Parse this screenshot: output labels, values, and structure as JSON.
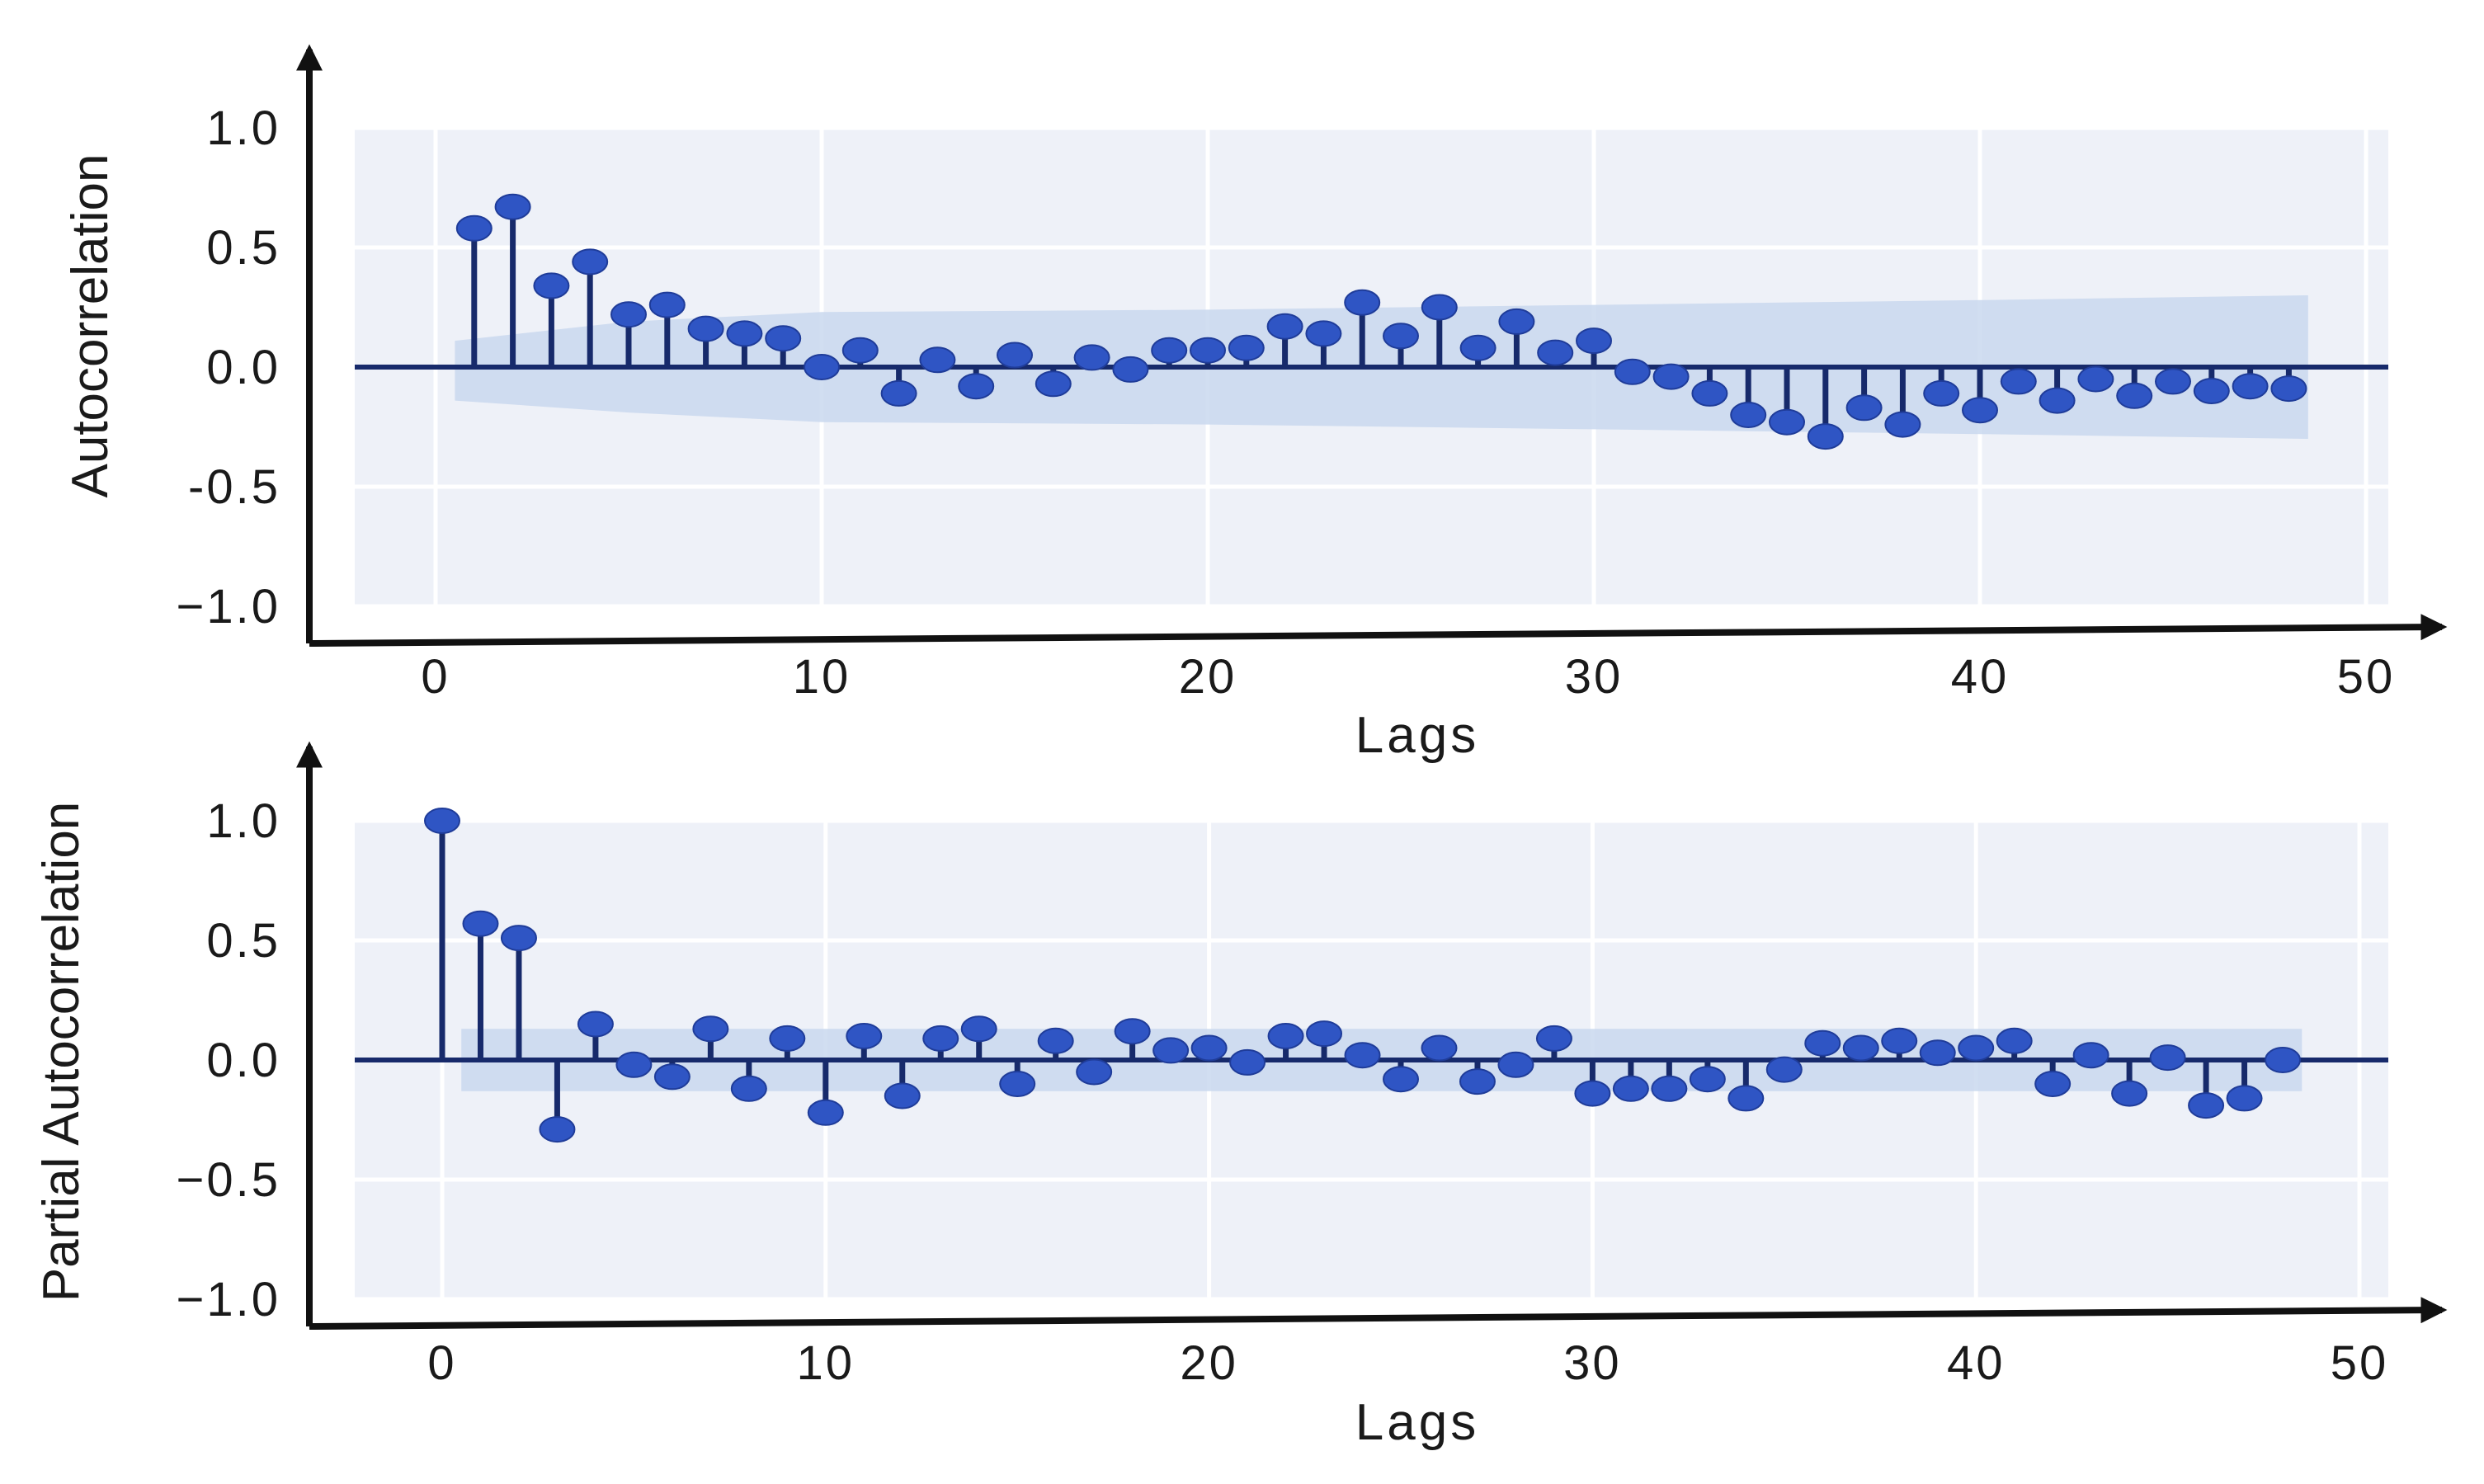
{
  "chart_data": [
    {
      "type": "stem",
      "title": "",
      "xlabel": "Lags",
      "ylabel": "Autocorrelation",
      "xlim": [
        -2.5,
        50
      ],
      "ylim": [
        -1.0,
        1.0
      ],
      "xticks": [
        0,
        10,
        20,
        30,
        40,
        50
      ],
      "yticks": [
        1.0,
        0.5,
        0.0,
        -0.5,
        -1.0
      ],
      "xtick_labels": [
        "0",
        "10",
        "20",
        "30",
        "40",
        "50"
      ],
      "ytick_labels": [
        "1.0",
        "0.5",
        "0.0",
        "-0.5",
        "−1.0"
      ],
      "grid": true,
      "lags": [
        1,
        2,
        3,
        4,
        5,
        6,
        7,
        8,
        9,
        10,
        11,
        12,
        13,
        14,
        15,
        16,
        17,
        18,
        19,
        20,
        21,
        22,
        23,
        24,
        25,
        26,
        27,
        28,
        29,
        30,
        31,
        32,
        33,
        34,
        35,
        36,
        37,
        38,
        39,
        40,
        41,
        42,
        43,
        44,
        45,
        46,
        47,
        48
      ],
      "values": [
        0.58,
        0.67,
        0.34,
        0.44,
        0.22,
        0.26,
        0.16,
        0.14,
        0.12,
        0.0,
        0.07,
        -0.11,
        0.03,
        -0.08,
        0.05,
        -0.07,
        0.04,
        -0.01,
        0.07,
        0.07,
        0.08,
        0.17,
        0.14,
        0.27,
        0.13,
        0.25,
        0.08,
        0.19,
        0.06,
        0.11,
        -0.02,
        -0.04,
        -0.11,
        -0.2,
        -0.23,
        -0.29,
        -0.17,
        -0.24,
        -0.11,
        -0.18,
        -0.06,
        -0.14,
        -0.05,
        -0.12,
        -0.06,
        -0.1,
        -0.08,
        -0.09
      ],
      "confidence_band": {
        "x": [
          0.5,
          5,
          10,
          20,
          30,
          40,
          48.5
        ],
        "upper": [
          0.11,
          0.19,
          0.23,
          0.24,
          0.26,
          0.28,
          0.3
        ],
        "lower": [
          -0.14,
          -0.19,
          -0.23,
          -0.24,
          -0.26,
          -0.28,
          -0.3
        ]
      },
      "colors": {
        "marker": "#2f55c4",
        "stem": "#172a6b",
        "zero_line": "#172a6b",
        "band": "#c9d8ef",
        "panel": "#eef1f8"
      }
    },
    {
      "type": "stem",
      "title": "",
      "xlabel": "Lags",
      "ylabel": "Partial Autocorrelation",
      "xlim": [
        -2.5,
        50
      ],
      "ylim": [
        -1.0,
        1.0
      ],
      "xticks": [
        0,
        10,
        20,
        30,
        40,
        50
      ],
      "yticks": [
        1.0,
        0.5,
        0.0,
        -0.5,
        -1.0
      ],
      "xtick_labels": [
        "0",
        "10",
        "20",
        "30",
        "40",
        "50"
      ],
      "ytick_labels": [
        "1.0",
        "0.5",
        "0.0",
        "−0.5",
        "−1.0"
      ],
      "grid": true,
      "lags": [
        0,
        1,
        2,
        3,
        4,
        5,
        6,
        7,
        8,
        9,
        10,
        11,
        12,
        13,
        14,
        15,
        16,
        17,
        18,
        19,
        20,
        21,
        22,
        23,
        24,
        25,
        26,
        27,
        28,
        29,
        30,
        31,
        32,
        33,
        34,
        35,
        36,
        37,
        38,
        39,
        40,
        41,
        42,
        43,
        44,
        45,
        46,
        47,
        48
      ],
      "values": [
        1.0,
        0.57,
        0.51,
        -0.29,
        0.15,
        -0.02,
        -0.07,
        0.13,
        -0.12,
        0.09,
        -0.22,
        0.1,
        -0.15,
        0.09,
        0.13,
        -0.1,
        0.08,
        -0.05,
        0.12,
        0.04,
        0.05,
        -0.01,
        0.1,
        0.11,
        0.02,
        -0.08,
        0.05,
        -0.09,
        -0.02,
        0.09,
        -0.14,
        -0.12,
        -0.12,
        -0.08,
        -0.16,
        -0.04,
        0.07,
        0.05,
        0.08,
        0.03,
        0.05,
        0.08,
        -0.1,
        0.02,
        -0.14,
        0.01,
        -0.19,
        -0.16,
        0.0
      ],
      "confidence_band": {
        "x": [
          0.5,
          48.5
        ],
        "upper": [
          0.13,
          0.13
        ],
        "lower": [
          -0.13,
          -0.13
        ]
      },
      "colors": {
        "marker": "#2f55c4",
        "stem": "#172a6b",
        "zero_line": "#172a6b",
        "band": "#c9d8ef",
        "panel": "#eef1f8"
      }
    }
  ]
}
